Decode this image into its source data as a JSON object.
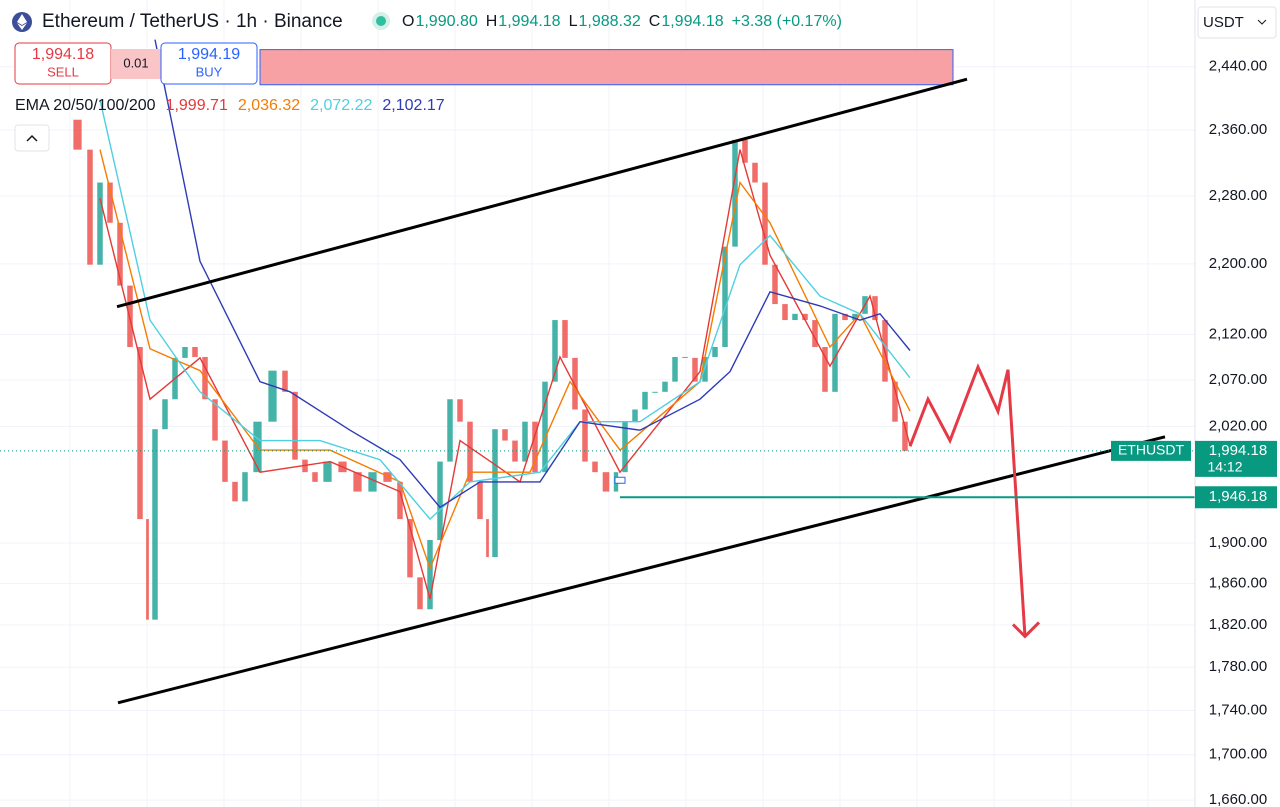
{
  "header": {
    "title": "Ethereum / TetherUS · 1h · Binance",
    "ohlc": [
      {
        "key": "O",
        "value": "1,990.80"
      },
      {
        "key": "H",
        "value": "1,994.18"
      },
      {
        "key": "L",
        "value": "1,988.32"
      },
      {
        "key": "C",
        "value": "1,994.18"
      }
    ],
    "change": "+3.38 (+0.17%)",
    "currency": "USDT",
    "sell": {
      "price": "1,994.18",
      "label": "SELL"
    },
    "spread": "0.01",
    "buy": {
      "price": "1,994.19",
      "label": "BUY"
    }
  },
  "chart_data": {
    "type": "candlestick",
    "log_scale": true,
    "grid": true,
    "ylim": [
      1654,
      2527
    ],
    "xlim": [
      0,
      239
    ],
    "yticks": [
      {
        "value": 2440,
        "label": "2,440.00"
      },
      {
        "value": 2360,
        "label": "2,360.00"
      },
      {
        "value": 2280,
        "label": "2,280.00"
      },
      {
        "value": 2200,
        "label": "2,200.00"
      },
      {
        "value": 2120,
        "label": "2,120.00"
      },
      {
        "value": 2070,
        "label": "2,070.00"
      },
      {
        "value": 2020,
        "label": "2,020.00"
      },
      {
        "value": 1900,
        "label": "1,900.00"
      },
      {
        "value": 1860,
        "label": "1,860.00"
      },
      {
        "value": 1820,
        "label": "1,820.00"
      },
      {
        "value": 1780,
        "label": "1,780.00"
      },
      {
        "value": 1740,
        "label": "1,740.00"
      },
      {
        "value": 1700,
        "label": "1,700.00"
      },
      {
        "value": 1660,
        "label": "1,660.00"
      }
    ],
    "up_color": "#26a69a",
    "down_color": "#ef5350",
    "x": [
      14,
      17,
      19,
      21,
      23,
      25,
      27,
      29,
      30,
      32,
      34,
      36,
      38,
      40,
      42,
      44,
      46,
      48,
      50,
      53,
      56,
      58,
      60,
      62,
      64,
      67,
      70,
      73,
      76,
      79,
      81,
      83,
      85,
      87,
      89,
      91,
      93,
      95,
      97,
      98,
      100,
      102,
      104,
      106,
      108,
      110,
      112,
      114,
      116,
      118,
      120,
      122.4,
      124,
      126,
      128,
      130,
      132,
      134,
      136,
      138,
      140,
      142,
      144,
      146,
      148,
      150,
      152,
      154,
      156,
      158,
      160,
      162,
      164,
      166,
      168,
      170,
      172,
      174,
      176,
      178,
      180,
      182
    ],
    "close": [
      2373,
      2336,
      2199,
      2296,
      2248,
      2175,
      2106,
      1924,
      1825,
      2017,
      2049,
      2094,
      2106,
      2095,
      2049,
      2005,
      1962,
      1942,
      1972,
      2025,
      2080,
      2057,
      1985,
      1972,
      1962,
      1983,
      1972,
      1952,
      1972,
      1962,
      1924,
      1866,
      1835,
      1903,
      1983,
      2049,
      2025,
      1962,
      1924,
      1886,
      2017,
      2005,
      1983,
      2025,
      1972,
      2068,
      2136,
      2094,
      2038,
      1983,
      1972,
      1952,
      1972,
      2025,
      2038,
      2057,
      2057,
      2068,
      2095,
      2094,
      2068,
      2095,
      2106,
      2220,
      2348,
      2320,
      2296,
      2199,
      2154,
      2136,
      2143,
      2136,
      2106,
      2057,
      2143,
      2136,
      2143,
      2163,
      2136,
      2068,
      2025,
      1994.18
    ],
    "symbol": "ETHUSDT",
    "last_price_label": "1,994.18",
    "countdown": "14:12",
    "price_line_color": "#089981",
    "indicator_label": "EMA 20/50/100/200",
    "series": [
      {
        "color": "#e53935",
        "value_label": "1,999.71",
        "x": [
          20,
          30,
          40,
          52,
          66,
          80,
          86,
          92,
          104,
          112,
          124,
          140,
          148,
          154,
          166,
          174,
          182
        ],
        "values": [
          2277,
          2049,
          2094,
          1972,
          1983,
          1952,
          1845,
          2005,
          1962,
          2095,
          1972,
          2079,
          2336,
          2210,
          2085,
          2163,
          1999.71
        ]
      },
      {
        "color": "#f57c00",
        "value_label": "2,036.32",
        "x": [
          20,
          30,
          40,
          52,
          66,
          80,
          86,
          94,
          106,
          114,
          124,
          140,
          148,
          154,
          166,
          172,
          182
        ],
        "values": [
          2336,
          2104,
          2080,
          1995,
          1995,
          1962,
          1875,
          1972,
          1972,
          2068,
          1995,
          2068,
          2296,
          2248,
          2106,
          2143,
          2036.32
        ]
      },
      {
        "color": "#4dd0e1",
        "value_label": "2,072.22",
        "x": [
          20,
          30,
          40,
          52,
          64,
          76,
          86,
          94,
          108,
          116,
          128,
          140,
          148,
          154,
          164,
          172,
          182
        ],
        "values": [
          2398,
          2136,
          2057,
          2005,
          2005,
          1985,
          1924,
          1962,
          1972,
          2025,
          2025,
          2068,
          2199,
          2233,
          2163,
          2143,
          2072.22
        ]
      },
      {
        "color": "#2e3bb8",
        "value_label": "2,102.17",
        "x": [
          31,
          40,
          52,
          58,
          70,
          80,
          88,
          96,
          108,
          116,
          128,
          140,
          146,
          154,
          164,
          172,
          176,
          182
        ],
        "values": [
          2475,
          2203,
          2068,
          2057,
          2016,
          1985,
          1936,
          1962,
          1962,
          2025,
          2016,
          2049,
          2079,
          2168,
          2152,
          2136,
          2143,
          2102.17
        ]
      }
    ],
    "trendlines": [
      {
        "color": "#000000",
        "x": [
          23.4,
          193.4
        ],
        "values": [
          2151,
          2424
        ]
      },
      {
        "color": "#000000",
        "x": [
          23.6,
          233
        ],
        "values": [
          1747,
          2009
        ]
      }
    ],
    "level": {
      "value": 1946.18,
      "label": "1,946.18",
      "x_start": 124,
      "color": "#089981"
    },
    "zone": {
      "x": [
        52,
        190.6
      ],
      "values": [
        2417,
        2462
      ],
      "color": "#f7a1a4"
    },
    "projection": {
      "color": "#e53945",
      "x": [
        182,
        185.6,
        190,
        195.6,
        199.6,
        201.6,
        205
      ],
      "values": [
        1999,
        2049,
        2005,
        2084,
        2036,
        2081,
        1809
      ]
    }
  }
}
